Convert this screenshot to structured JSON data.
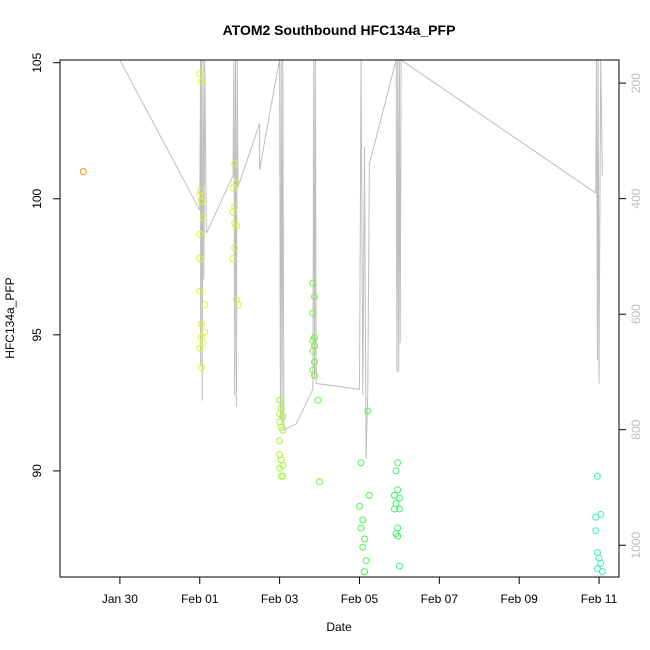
{
  "chart_data": {
    "type": "scatter",
    "title": "ATOM2 Southbound HFC134a_PFP",
    "xlabel": "Date",
    "ylabel": "HFC134a_PFP",
    "x_axis": {
      "range": [
        "2017-01-28T12:00",
        "2017-02-11T12:00"
      ],
      "ticks": [
        {
          "x": "2017-01-30",
          "label": "Jan 30"
        },
        {
          "x": "2017-02-01",
          "label": "Feb 01"
        },
        {
          "x": "2017-02-03",
          "label": "Feb 03"
        },
        {
          "x": "2017-02-05",
          "label": "Feb 05"
        },
        {
          "x": "2017-02-07",
          "label": "Feb 07"
        },
        {
          "x": "2017-02-09",
          "label": "Feb 09"
        },
        {
          "x": "2017-02-11",
          "label": "Feb 11"
        }
      ]
    },
    "y_axis": {
      "range": [
        86.1,
        105.1
      ],
      "ticks": [
        90,
        95,
        100,
        105
      ],
      "tick_labels": [
        "90",
        "95",
        "100",
        "105"
      ]
    },
    "y2_axis": {
      "range": [
        1055,
        160
      ],
      "ticks": [
        200,
        400,
        600,
        800,
        1000
      ],
      "tick_labels": [
        "200",
        "400",
        "600",
        "800",
        "1000"
      ],
      "color": "#bebebe"
    },
    "point_style": "open circle, colored by latitude (orange to cyan)",
    "series": [
      {
        "color": "#ff8c1a",
        "points": [
          [
            "2017-01-29T02:00",
            101.0
          ]
        ]
      },
      {
        "color": "#e0f52e",
        "points": [
          [
            "2017-02-01T00:00",
            104.6
          ],
          [
            "2017-02-01T01:00",
            104.3
          ],
          [
            "2017-02-01T00:30",
            100.3
          ],
          [
            "2017-02-01T00:00",
            100.1
          ],
          [
            "2017-02-01T01:00",
            99.9
          ],
          [
            "2017-02-01T02:00",
            99.3
          ],
          [
            "2017-02-01T00:00",
            98.7
          ],
          [
            "2017-02-01T00:00",
            97.8
          ],
          [
            "2017-02-01T00:00",
            96.6
          ],
          [
            "2017-02-01T03:00",
            96.1
          ],
          [
            "2017-02-01T01:00",
            95.4
          ],
          [
            "2017-02-01T03:00",
            95.1
          ],
          [
            "2017-02-01T01:00",
            94.9
          ],
          [
            "2017-02-01T00:00",
            94.5
          ],
          [
            "2017-02-01T02:00",
            94.7
          ],
          [
            "2017-02-01T01:00",
            93.8
          ]
        ]
      },
      {
        "color": "#d4f53a",
        "points": [
          [
            "2017-02-01T21:00",
            101.3
          ],
          [
            "2017-02-01T22:00",
            100.6
          ],
          [
            "2017-02-01T20:00",
            100.4
          ],
          [
            "2017-02-01T21:00",
            99.7
          ],
          [
            "2017-02-01T20:00",
            99.5
          ],
          [
            "2017-02-01T21:00",
            99.1
          ],
          [
            "2017-02-01T22:00",
            99.0
          ],
          [
            "2017-02-01T21:00",
            98.2
          ],
          [
            "2017-02-01T20:00",
            97.8
          ],
          [
            "2017-02-01T22:00",
            96.3
          ],
          [
            "2017-02-01T23:00",
            96.1
          ]
        ]
      },
      {
        "color": "#a6f53a",
        "points": [
          [
            "2017-02-03T00:00",
            92.6
          ],
          [
            "2017-02-03T01:00",
            92.3
          ],
          [
            "2017-02-03T00:00",
            92.1
          ],
          [
            "2017-02-03T02:00",
            92.0
          ],
          [
            "2017-02-03T00:00",
            91.8
          ],
          [
            "2017-02-03T01:00",
            91.6
          ],
          [
            "2017-02-03T02:00",
            91.5
          ],
          [
            "2017-02-03T00:00",
            91.1
          ],
          [
            "2017-02-03T00:00",
            90.6
          ],
          [
            "2017-02-03T01:00",
            90.4
          ],
          [
            "2017-02-03T02:00",
            90.2
          ],
          [
            "2017-02-03T00:00",
            90.1
          ],
          [
            "2017-02-03T01:00",
            89.8
          ],
          [
            "2017-02-03T02:00",
            89.8
          ]
        ]
      },
      {
        "color": "#74f53a",
        "points": [
          [
            "2017-02-03T20:00",
            96.9
          ],
          [
            "2017-02-03T21:00",
            96.4
          ],
          [
            "2017-02-03T20:00",
            95.8
          ],
          [
            "2017-02-03T21:00",
            94.9
          ],
          [
            "2017-02-03T20:00",
            94.8
          ],
          [
            "2017-02-03T21:00",
            94.6
          ],
          [
            "2017-02-03T20:00",
            94.4
          ],
          [
            "2017-02-03T21:00",
            94.0
          ],
          [
            "2017-02-03T20:00",
            93.7
          ],
          [
            "2017-02-03T21:00",
            93.5
          ],
          [
            "2017-02-03T23:00",
            92.6
          ],
          [
            "2017-02-04T00:00",
            89.6
          ]
        ]
      },
      {
        "color": "#48f54a",
        "points": [
          [
            "2017-02-05T01:00",
            90.3
          ],
          [
            "2017-02-05T05:00",
            92.2
          ],
          [
            "2017-02-05T06:00",
            89.1
          ],
          [
            "2017-02-05T00:00",
            88.7
          ],
          [
            "2017-02-05T02:00",
            88.2
          ],
          [
            "2017-02-05T01:00",
            87.9
          ],
          [
            "2017-02-05T03:00",
            87.5
          ],
          [
            "2017-02-05T02:00",
            87.2
          ],
          [
            "2017-02-05T04:00",
            86.7
          ],
          [
            "2017-02-05T03:00",
            86.3
          ]
        ]
      },
      {
        "color": "#40f56a",
        "points": [
          [
            "2017-02-05T23:00",
            90.3
          ],
          [
            "2017-02-05T22:00",
            90.0
          ],
          [
            "2017-02-05T21:00",
            89.1
          ],
          [
            "2017-02-05T23:00",
            89.3
          ],
          [
            "2017-02-06T00:00",
            89.0
          ],
          [
            "2017-02-05T22:00",
            88.8
          ],
          [
            "2017-02-05T21:00",
            88.6
          ],
          [
            "2017-02-06T00:00",
            88.6
          ],
          [
            "2017-02-05T23:00",
            87.9
          ],
          [
            "2017-02-05T22:00",
            87.7
          ],
          [
            "2017-02-05T23:00",
            87.6
          ],
          [
            "2017-02-06T00:00",
            86.5
          ]
        ]
      },
      {
        "color": "#38f5b4",
        "points": [
          [
            "2017-02-10T23:00",
            89.8
          ],
          [
            "2017-02-10T22:00",
            88.3
          ],
          [
            "2017-02-11T01:00",
            88.4
          ],
          [
            "2017-02-10T22:00",
            87.8
          ],
          [
            "2017-02-10T23:00",
            87.0
          ],
          [
            "2017-02-11T00:00",
            86.8
          ],
          [
            "2017-02-11T01:00",
            86.6
          ],
          [
            "2017-02-10T23:00",
            86.4
          ],
          [
            "2017-02-11T02:00",
            86.3
          ]
        ]
      }
    ],
    "pressure_trace": {
      "axis": "y2",
      "color": "#bebebe",
      "points": [
        [
          "2017-01-30T00:00",
          160
        ],
        [
          "2017-02-01T00:00",
          420
        ],
        [
          "2017-02-01T00:30",
          160
        ],
        [
          "2017-02-01T00:30",
          690
        ],
        [
          "2017-02-01T01:00",
          160
        ],
        [
          "2017-02-01T01:30",
          750
        ],
        [
          "2017-02-01T02:00",
          160
        ],
        [
          "2017-02-01T02:30",
          540
        ],
        [
          "2017-02-01T03:00",
          160
        ],
        [
          "2017-02-01T04:00",
          460
        ],
        [
          "2017-02-01T20:00",
          360
        ],
        [
          "2017-02-01T20:30",
          160
        ],
        [
          "2017-02-01T21:00",
          740
        ],
        [
          "2017-02-01T21:30",
          160
        ],
        [
          "2017-02-01T22:00",
          760
        ],
        [
          "2017-02-01T22:30",
          160
        ],
        [
          "2017-02-01T23:00",
          380
        ],
        [
          "2017-02-02T12:00",
          270
        ],
        [
          "2017-02-02T12:00",
          350
        ],
        [
          "2017-02-02T22:00",
          190
        ],
        [
          "2017-02-03T00:00",
          160
        ],
        [
          "2017-02-03T00:30",
          780
        ],
        [
          "2017-02-03T01:00",
          160
        ],
        [
          "2017-02-03T01:30",
          790
        ],
        [
          "2017-02-03T02:00",
          160
        ],
        [
          "2017-02-03T02:30",
          800
        ],
        [
          "2017-02-03T10:00",
          790
        ],
        [
          "2017-02-03T20:00",
          730
        ],
        [
          "2017-02-03T20:30",
          160
        ],
        [
          "2017-02-03T21:00",
          710
        ],
        [
          "2017-02-03T21:30",
          160
        ],
        [
          "2017-02-03T22:00",
          720
        ],
        [
          "2017-02-05T00:00",
          730
        ],
        [
          "2017-02-05T01:00",
          160
        ],
        [
          "2017-02-05T02:00",
          740
        ],
        [
          "2017-02-05T03:00",
          310
        ],
        [
          "2017-02-05T04:00",
          850
        ],
        [
          "2017-02-05T05:00",
          730
        ],
        [
          "2017-02-05T06:00",
          340
        ],
        [
          "2017-02-05T22:00",
          160
        ],
        [
          "2017-02-05T22:30",
          700
        ],
        [
          "2017-02-05T23:00",
          160
        ],
        [
          "2017-02-05T23:30",
          700
        ],
        [
          "2017-02-06T00:00",
          160
        ],
        [
          "2017-02-06T00:30",
          650
        ],
        [
          "2017-02-06T01:00",
          160
        ],
        [
          "2017-02-10T22:00",
          390
        ],
        [
          "2017-02-10T22:30",
          160
        ],
        [
          "2017-02-10T23:00",
          680
        ],
        [
          "2017-02-10T23:30",
          160
        ],
        [
          "2017-02-11T00:00",
          720
        ],
        [
          "2017-02-11T01:00",
          160
        ],
        [
          "2017-02-11T02:00",
          360
        ]
      ]
    }
  }
}
